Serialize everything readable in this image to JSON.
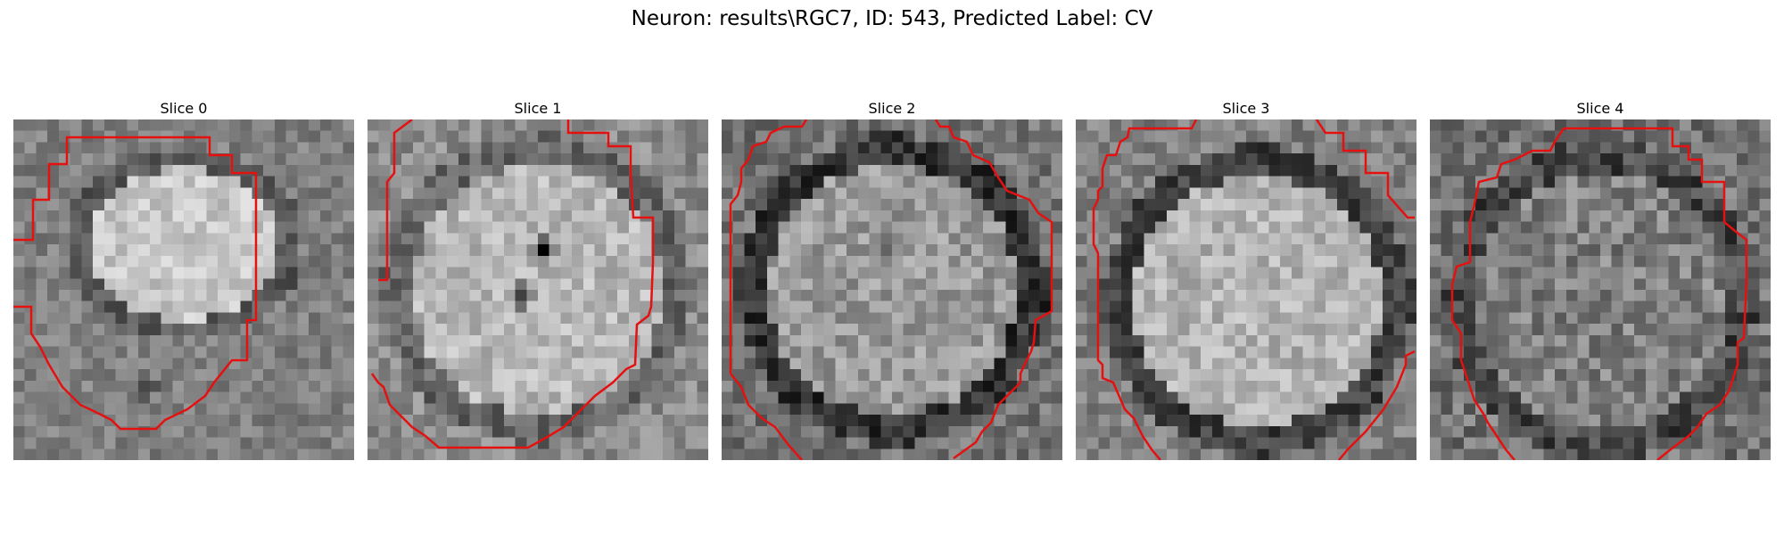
{
  "figure": {
    "title": "Neuron: results\\RGC7, ID: 543, Predicted Label: CV"
  },
  "slices": [
    {
      "title": "Slice 0"
    },
    {
      "title": "Slice 1"
    },
    {
      "title": "Slice 2"
    },
    {
      "title": "Slice 3"
    },
    {
      "title": "Slice 4"
    }
  ],
  "colors": {
    "contour": "#e51010"
  }
}
